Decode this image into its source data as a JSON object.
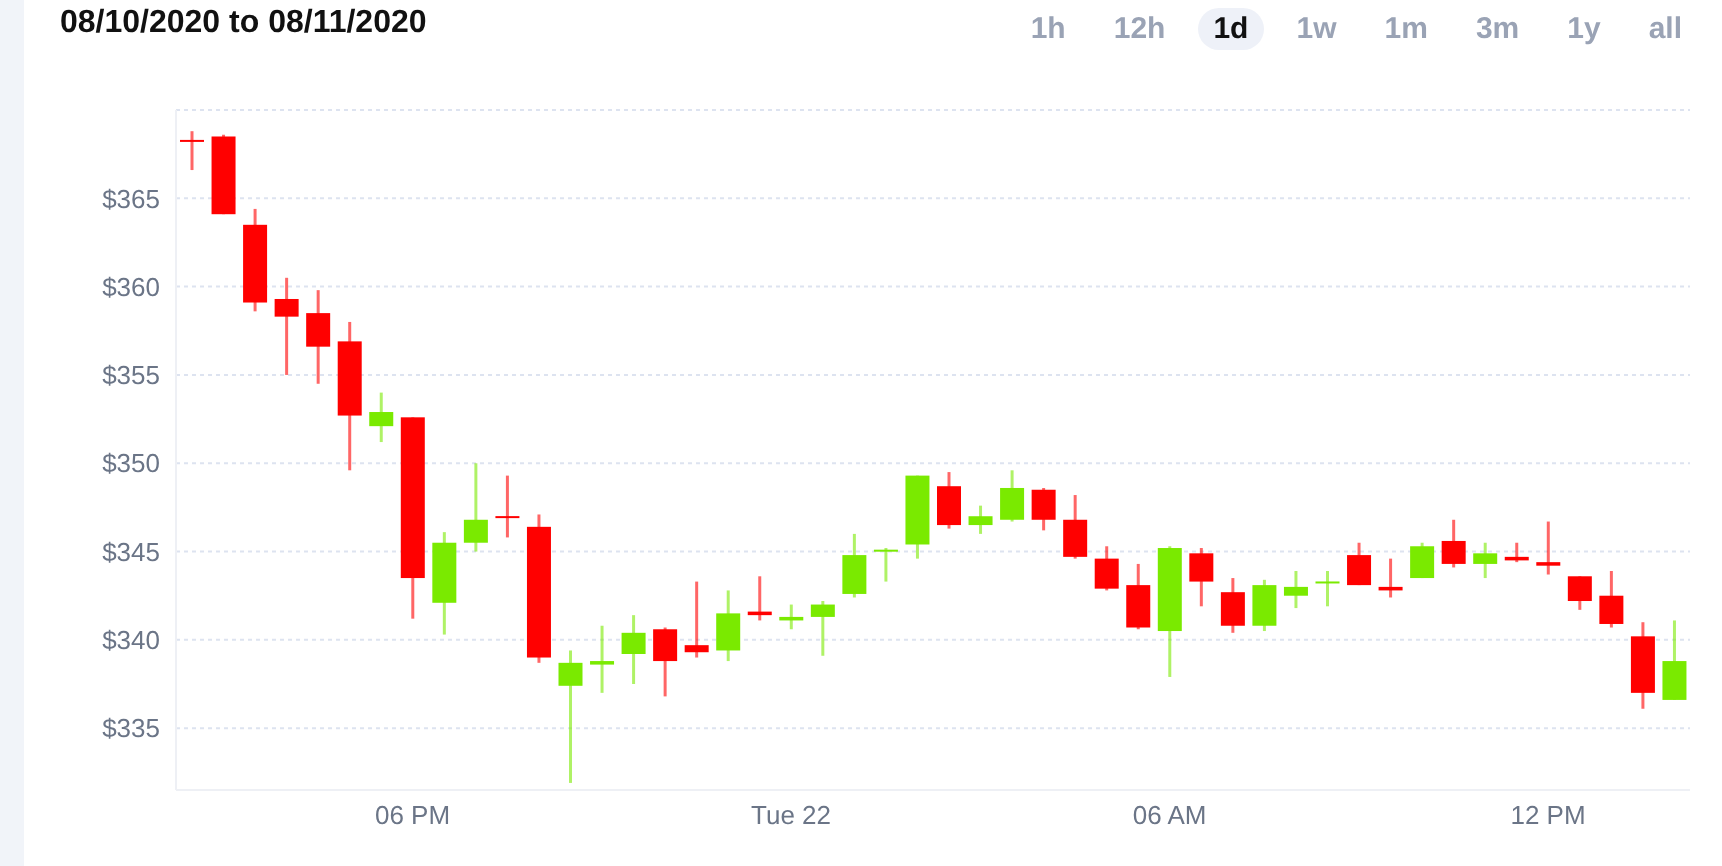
{
  "chart_data": {
    "type": "candlestick",
    "title": "08/10/2020 to 08/11/2020",
    "annotations": [
      "1h",
      "12h",
      "1d",
      "1w",
      "1m",
      "3m",
      "1y",
      "all"
    ],
    "categories": [
      null,
      null,
      null,
      null,
      null,
      null,
      null,
      "06 PM",
      null,
      null,
      null,
      null,
      null,
      null,
      null,
      null,
      null,
      null,
      null,
      "Tue 22",
      null,
      null,
      null,
      null,
      null,
      null,
      null,
      null,
      null,
      null,
      null,
      "06 AM",
      null,
      null,
      null,
      null,
      null,
      null,
      null,
      null,
      null,
      null,
      null,
      "12 PM",
      null,
      null,
      null,
      null
    ],
    "ohlc": [
      [
        368.3,
        368.8,
        366.6,
        368.2
      ],
      [
        368.5,
        368.6,
        364.1,
        364.1
      ],
      [
        363.5,
        364.4,
        358.6,
        359.1
      ],
      [
        359.3,
        360.5,
        355.0,
        358.3
      ],
      [
        358.5,
        359.8,
        354.5,
        356.6
      ],
      [
        356.9,
        358.0,
        349.6,
        352.7
      ],
      [
        352.1,
        354.0,
        351.2,
        352.9
      ],
      [
        352.6,
        352.6,
        341.2,
        343.5
      ],
      [
        342.1,
        346.1,
        340.3,
        345.5
      ],
      [
        345.5,
        350.0,
        345.0,
        346.8
      ],
      [
        347.0,
        349.3,
        345.8,
        346.9
      ],
      [
        346.4,
        347.1,
        338.7,
        339.0
      ],
      [
        337.4,
        339.4,
        331.9,
        338.7
      ],
      [
        338.6,
        340.8,
        337.0,
        338.8
      ],
      [
        339.2,
        341.4,
        337.5,
        340.4
      ],
      [
        340.6,
        340.7,
        336.8,
        338.8
      ],
      [
        339.7,
        343.3,
        339.0,
        339.3
      ],
      [
        339.4,
        342.8,
        338.8,
        341.5
      ],
      [
        341.6,
        343.6,
        341.1,
        341.4
      ],
      [
        341.1,
        342.0,
        340.6,
        341.3
      ],
      [
        341.3,
        342.2,
        339.1,
        342.0
      ],
      [
        342.6,
        346.0,
        342.4,
        344.8
      ],
      [
        345.0,
        345.2,
        343.3,
        345.1
      ],
      [
        345.4,
        349.3,
        344.6,
        349.3
      ],
      [
        348.7,
        349.5,
        346.3,
        346.5
      ],
      [
        346.5,
        347.6,
        346.0,
        347.0
      ],
      [
        346.8,
        349.6,
        346.7,
        348.6
      ],
      [
        348.5,
        348.6,
        346.2,
        346.8
      ],
      [
        346.8,
        348.2,
        344.6,
        344.7
      ],
      [
        344.6,
        345.3,
        342.8,
        342.9
      ],
      [
        343.1,
        344.3,
        340.6,
        340.7
      ],
      [
        340.5,
        345.3,
        337.9,
        345.2
      ],
      [
        344.9,
        345.2,
        341.9,
        343.3
      ],
      [
        342.7,
        343.5,
        340.4,
        340.8
      ],
      [
        340.8,
        343.4,
        340.5,
        343.1
      ],
      [
        342.5,
        343.9,
        341.8,
        343.0
      ],
      [
        343.2,
        343.9,
        341.9,
        343.3
      ],
      [
        344.8,
        345.5,
        343.1,
        343.1
      ],
      [
        343.0,
        344.6,
        342.4,
        342.8
      ],
      [
        343.5,
        345.5,
        343.5,
        345.3
      ],
      [
        345.6,
        346.8,
        344.1,
        344.3
      ],
      [
        344.3,
        345.5,
        343.5,
        344.9
      ],
      [
        344.7,
        345.5,
        344.4,
        344.5
      ],
      [
        344.4,
        346.7,
        343.7,
        344.2
      ],
      [
        343.6,
        343.6,
        341.7,
        342.2
      ],
      [
        342.5,
        343.9,
        340.7,
        340.9
      ],
      [
        340.2,
        341.0,
        336.1,
        337.0
      ],
      [
        336.6,
        341.1,
        336.6,
        338.8
      ]
    ],
    "colors": [
      "#ff0000",
      "#ff0000",
      "#ff0000",
      "#ff0000",
      "#ff0000",
      "#ff0000",
      "#7aea00",
      "#ff0000",
      "#7aea00",
      "#7aea00",
      "#ff0000",
      "#ff0000",
      "#7aea00",
      "#7aea00",
      "#7aea00",
      "#ff0000",
      "#ff0000",
      "#7aea00",
      "#ff0000",
      "#7aea00",
      "#7aea00",
      "#7aea00",
      "#7aea00",
      "#7aea00",
      "#ff0000",
      "#7aea00",
      "#7aea00",
      "#ff0000",
      "#ff0000",
      "#ff0000",
      "#ff0000",
      "#7aea00",
      "#ff0000",
      "#ff0000",
      "#7aea00",
      "#7aea00",
      "#7aea00",
      "#ff0000",
      "#ff0000",
      "#7aea00",
      "#ff0000",
      "#7aea00",
      "#ff0000",
      "#ff0000",
      "#ff0000",
      "#ff0000",
      "#ff0000",
      "#7aea00"
    ],
    "ylim": [
      331.5,
      370
    ],
    "yticks": [
      {
        "value": 335,
        "label": "$335"
      },
      {
        "value": 340,
        "label": "$340"
      },
      {
        "value": 345,
        "label": "$345"
      },
      {
        "value": 350,
        "label": "$350"
      },
      {
        "value": 355,
        "label": "$355"
      },
      {
        "value": 360,
        "label": "$360"
      },
      {
        "value": 365,
        "label": "$365"
      }
    ],
    "grid": "y"
  }
}
